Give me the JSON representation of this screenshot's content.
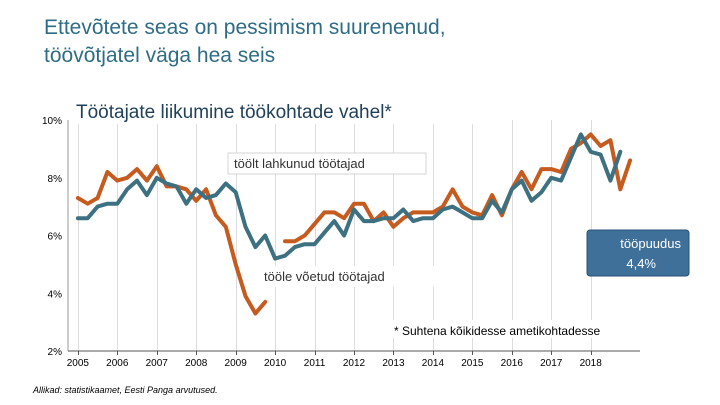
{
  "slide": {
    "title_line1": "Ettevõtete seas on pessimism suurenenud,",
    "title_line2": "töövõtjatel väga hea seis",
    "source": "Allikad: statistikaamet, Eesti Panga arvutused."
  },
  "colors": {
    "left_series": "#c65b1f",
    "hired_series": "#3d7182",
    "callout_fill": "#3e7099",
    "title": "#2f6d86"
  },
  "chart_data": {
    "type": "line",
    "title": "Töötajate liikumine töökohtade vahel*",
    "xlabel": "",
    "ylabel": "",
    "xlim": [
      2004.75,
      2019.25
    ],
    "ylim": [
      2,
      10
    ],
    "y_ticks": [
      2,
      4,
      6,
      8,
      10
    ],
    "y_tick_labels": [
      "2%",
      "4%",
      "6%",
      "8%",
      "10%"
    ],
    "x_ticks": [
      2005,
      2006,
      2007,
      2008,
      2009,
      2010,
      2011,
      2012,
      2013,
      2014,
      2015,
      2016,
      2017,
      2018
    ],
    "x_tick_labels": [
      "2005",
      "2006",
      "2007",
      "2008",
      "2009",
      "2010",
      "2011",
      "2012",
      "2013",
      "2014",
      "2015",
      "2016",
      "2017",
      "2018"
    ],
    "grid": "vertical",
    "series": [
      {
        "name": "töölt lahkunud töötajad",
        "color": "#c65b1f",
        "x": [
          2005.0,
          2005.25,
          2005.5,
          2005.75,
          2006.0,
          2006.25,
          2006.5,
          2006.75,
          2007.0,
          2007.25,
          2007.5,
          2007.75,
          2008.0,
          2008.25,
          2008.5,
          2008.75,
          2009.0,
          2009.25,
          2009.5,
          2009.75,
          2010.0,
          2010.25,
          2010.5,
          2010.75,
          2011.0,
          2011.25,
          2011.5,
          2011.75,
          2012.0,
          2012.25,
          2012.5,
          2012.75,
          2013.0,
          2013.25,
          2013.5,
          2013.75,
          2014.0,
          2014.25,
          2014.5,
          2014.75,
          2015.0,
          2015.25,
          2015.5,
          2015.75,
          2016.0,
          2016.25,
          2016.5,
          2016.75,
          2017.0,
          2017.25,
          2017.5,
          2017.75,
          2018.0,
          2018.25,
          2018.5,
          2018.75,
          2019.0
        ],
        "values": [
          7.3,
          7.1,
          7.3,
          8.2,
          7.9,
          8.0,
          8.3,
          7.9,
          8.4,
          7.7,
          7.7,
          7.6,
          7.2,
          7.6,
          6.7,
          6.3,
          5.0,
          3.9,
          3.3,
          3.7,
          null,
          5.8,
          5.8,
          6.0,
          6.4,
          6.8,
          6.8,
          6.6,
          7.1,
          7.1,
          6.5,
          6.8,
          6.3,
          6.6,
          6.8,
          6.8,
          6.8,
          7.0,
          7.6,
          7.0,
          6.8,
          6.7,
          7.4,
          6.7,
          7.6,
          8.2,
          7.6,
          8.3,
          8.3,
          8.2,
          9.0,
          9.2,
          9.5,
          9.1,
          9.3,
          7.6,
          8.6
        ]
      },
      {
        "name": "tööle võetud töötajad",
        "color": "#3d7182",
        "x": [
          2005.0,
          2005.25,
          2005.5,
          2005.75,
          2006.0,
          2006.25,
          2006.5,
          2006.75,
          2007.0,
          2007.25,
          2007.5,
          2007.75,
          2008.0,
          2008.25,
          2008.5,
          2008.75,
          2009.0,
          2009.25,
          2009.5,
          2009.75,
          2010.0,
          2010.25,
          2010.5,
          2010.75,
          2011.0,
          2011.25,
          2011.5,
          2011.75,
          2012.0,
          2012.25,
          2012.5,
          2012.75,
          2013.0,
          2013.25,
          2013.5,
          2013.75,
          2014.0,
          2014.25,
          2014.5,
          2014.75,
          2015.0,
          2015.25,
          2015.5,
          2015.75,
          2016.0,
          2016.25,
          2016.5,
          2016.75,
          2017.0,
          2017.25,
          2017.5,
          2017.75,
          2018.0,
          2018.25,
          2018.5,
          2018.75,
          2019.0
        ],
        "values": [
          6.6,
          6.6,
          7.0,
          7.1,
          7.1,
          7.6,
          7.9,
          7.4,
          8.0,
          7.8,
          7.7,
          7.1,
          7.6,
          7.3,
          7.4,
          7.8,
          7.5,
          6.3,
          5.6,
          6.0,
          5.2,
          5.3,
          5.6,
          5.7,
          5.7,
          6.1,
          6.5,
          6.0,
          6.9,
          6.5,
          6.5,
          6.6,
          6.6,
          6.9,
          6.5,
          6.6,
          6.6,
          6.9,
          7.0,
          6.8,
          6.6,
          6.6,
          7.2,
          6.8,
          7.6,
          7.9,
          7.2,
          7.5,
          8.0,
          7.9,
          8.7,
          9.5,
          8.9,
          8.8,
          7.9,
          8.9,
          null
        ]
      }
    ],
    "annotations": {
      "left_label": "töölt lahkunud töötajad",
      "hired_label": "tööle võetud töötajad",
      "callout_line1": "tööpuudus",
      "callout_line2": "4,4%",
      "footnote": "* Suhtena kõikidesse ametikohtadesse"
    }
  }
}
